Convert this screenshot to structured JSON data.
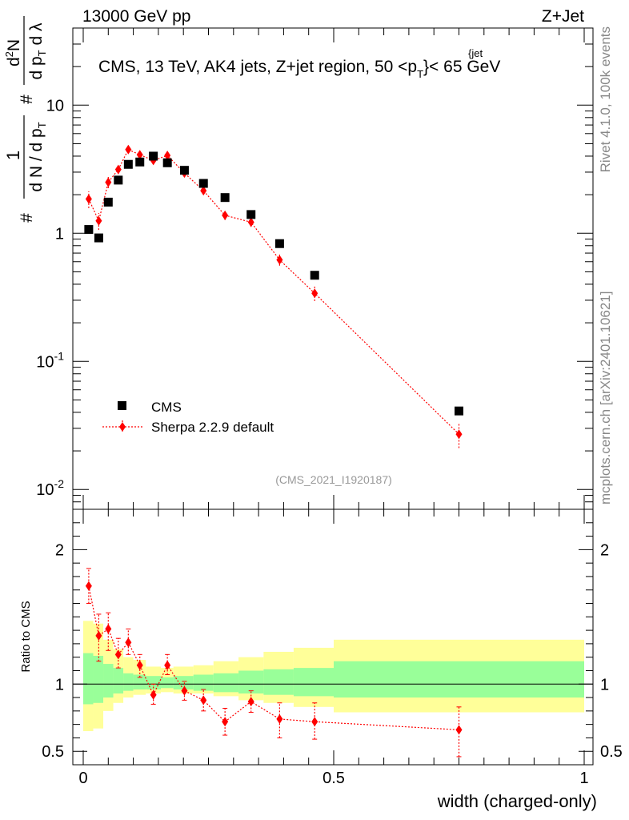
{
  "header": {
    "left": "13000 GeV pp",
    "right": "Z+Jet"
  },
  "side_labels": {
    "rivet": "Rivet 4.1.0,  100k events",
    "site": "mcplots.cern.ch [arXiv:2401.10621]"
  },
  "chart_data": [
    {
      "type": "scatter",
      "panel": "main",
      "title_parts": {
        "before": "CMS, 13 TeV, AK4 jets, Z+jet region, 50 <p",
        "sub": "T",
        "sup": "{jet",
        "after": "}< 65 GeV"
      },
      "y_log": true,
      "xlim": [
        0,
        1
      ],
      "ylim": [
        0.007,
        40
      ],
      "ytick_labels": [
        {
          "value": 0.01,
          "base": "10",
          "exp": "-2"
        },
        {
          "value": 0.1,
          "base": "10",
          "exp": "-1"
        },
        {
          "value": 1,
          "base": "1",
          "exp": ""
        },
        {
          "value": 10,
          "base": "10",
          "exp": ""
        }
      ],
      "ylabel": "# 1/(d N / d pT) # d²N/(d pT dλ)",
      "ylabel_parts": {
        "hash": "#",
        "one": "1",
        "den": "d N / d p",
        "T": "T",
        "num": "d N",
        "sq": "2",
        "den2": "d p",
        "dl": "d λ"
      },
      "reference": "(CMS_2021_I1920187)",
      "legend": [
        {
          "name": "CMS",
          "marker": "square",
          "color": "#000000"
        },
        {
          "name": "Sherpa 2.2.9 default",
          "marker": "diamond",
          "color": "#ff0000"
        }
      ],
      "series": [
        {
          "name": "CMS",
          "x": [
            0.011,
            0.031,
            0.05,
            0.07,
            0.09,
            0.113,
            0.14,
            0.168,
            0.202,
            0.24,
            0.283,
            0.335,
            0.392,
            0.462,
            0.75
          ],
          "y": [
            1.07,
            0.92,
            1.75,
            2.6,
            3.45,
            3.6,
            4.0,
            3.55,
            3.1,
            2.45,
            1.9,
            1.4,
            0.83,
            0.47,
            0.041
          ]
        },
        {
          "name": "Sherpa 2.2.9 default",
          "x": [
            0.011,
            0.031,
            0.05,
            0.07,
            0.09,
            0.113,
            0.14,
            0.168,
            0.202,
            0.24,
            0.283,
            0.335,
            0.392,
            0.462,
            0.75
          ],
          "y": [
            1.85,
            1.25,
            2.5,
            3.15,
            4.5,
            4.1,
            3.7,
            4.05,
            2.95,
            2.15,
            1.38,
            1.22,
            0.62,
            0.34,
            0.027
          ],
          "yerr_rel": [
            0.15,
            0.15,
            0.1,
            0.08,
            0.06,
            0.05,
            0.05,
            0.05,
            0.06,
            0.07,
            0.08,
            0.08,
            0.1,
            0.13,
            0.22
          ]
        }
      ]
    },
    {
      "type": "scatter",
      "panel": "ratio",
      "xlabel": "width (charged-only)",
      "ylabel": "Ratio to CMS",
      "xlim": [
        0,
        1
      ],
      "ylim": [
        0.4,
        2.3
      ],
      "xticks": [
        0,
        0.5,
        1
      ],
      "xtick_labels": [
        "0",
        "0.5",
        "1"
      ],
      "yticks": [
        0.5,
        1,
        2
      ],
      "ytick_labels": [
        "0.5",
        "1",
        "2"
      ],
      "bin_edges": [
        0,
        0.02,
        0.04,
        0.06,
        0.08,
        0.1,
        0.125,
        0.155,
        0.18,
        0.22,
        0.26,
        0.31,
        0.36,
        0.42,
        0.5,
        1.0
      ],
      "band_yellow": [
        [
          0.65,
          1.47
        ],
        [
          0.67,
          1.45
        ],
        [
          0.8,
          1.33
        ],
        [
          0.86,
          1.26
        ],
        [
          0.9,
          1.2
        ],
        [
          0.92,
          1.18
        ],
        [
          0.93,
          1.13
        ],
        [
          0.94,
          1.12
        ],
        [
          0.93,
          1.13
        ],
        [
          0.93,
          1.14
        ],
        [
          0.91,
          1.17
        ],
        [
          0.88,
          1.2
        ],
        [
          0.86,
          1.24
        ],
        [
          0.83,
          1.27
        ],
        [
          0.79,
          1.33
        ]
      ],
      "band_green": [
        [
          0.85,
          1.23
        ],
        [
          0.86,
          1.21
        ],
        [
          0.9,
          1.15
        ],
        [
          0.93,
          1.12
        ],
        [
          0.95,
          1.08
        ],
        [
          0.96,
          1.07
        ],
        [
          0.96,
          1.06
        ],
        [
          0.97,
          1.05
        ],
        [
          0.96,
          1.06
        ],
        [
          0.95,
          1.07
        ],
        [
          0.94,
          1.08
        ],
        [
          0.93,
          1.1
        ],
        [
          0.92,
          1.11
        ],
        [
          0.91,
          1.12
        ],
        [
          0.9,
          1.17
        ]
      ],
      "series": [
        {
          "name": "Sherpa 2.2.9 default",
          "x": [
            0.011,
            0.031,
            0.05,
            0.07,
            0.09,
            0.113,
            0.14,
            0.168,
            0.202,
            0.24,
            0.283,
            0.335,
            0.392,
            0.462,
            0.75
          ],
          "y": [
            1.73,
            1.36,
            1.41,
            1.22,
            1.31,
            1.14,
            0.92,
            1.14,
            0.95,
            0.88,
            0.72,
            0.87,
            0.74,
            0.72,
            0.66
          ],
          "yerr_low": [
            1.6,
            1.17,
            1.25,
            1.12,
            1.22,
            1.05,
            0.85,
            1.07,
            0.88,
            0.8,
            0.62,
            0.79,
            0.6,
            0.59,
            0.46
          ],
          "yerr_high": [
            1.86,
            1.52,
            1.53,
            1.34,
            1.41,
            1.22,
            1.0,
            1.22,
            1.02,
            0.96,
            0.82,
            0.95,
            0.86,
            0.86,
            0.83
          ]
        }
      ]
    }
  ]
}
